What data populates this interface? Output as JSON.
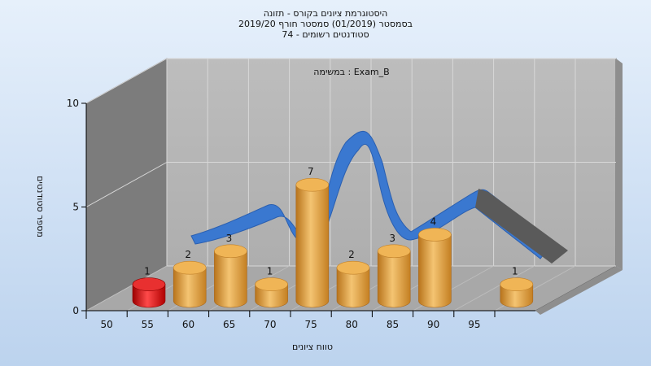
{
  "chart_data": {
    "type": "bar",
    "title_lines": [
      "היסטוגרמת ציונים בקורס - תזונה",
      "בסמסטר  (01/2019)  סמסטר חורף 2019/20",
      "סטודנטים רשומים - 74"
    ],
    "annotation": "במשימה : Exam_B",
    "xlabel": "טווח ציונים",
    "ylabel": "מספר סטודנטים",
    "ylim": [
      0,
      10
    ],
    "yticks": [
      0,
      5,
      10
    ],
    "categories": [
      "50",
      "55",
      "60",
      "65",
      "70",
      "75",
      "80",
      "85",
      "90",
      "95"
    ],
    "values": [
      1,
      2,
      3,
      1,
      7,
      2,
      3,
      4,
      0,
      1
    ],
    "highlight_index": 0,
    "colors": {
      "bar": "#e8a43c",
      "bar_highlight": "#d81010",
      "curve": "#3a78d0",
      "curve_tail": "#5a5a5a",
      "wall": "#b4b4b4",
      "side_wall": "#7c7c7c",
      "floor": "#a8a8a8"
    },
    "grid": true
  }
}
